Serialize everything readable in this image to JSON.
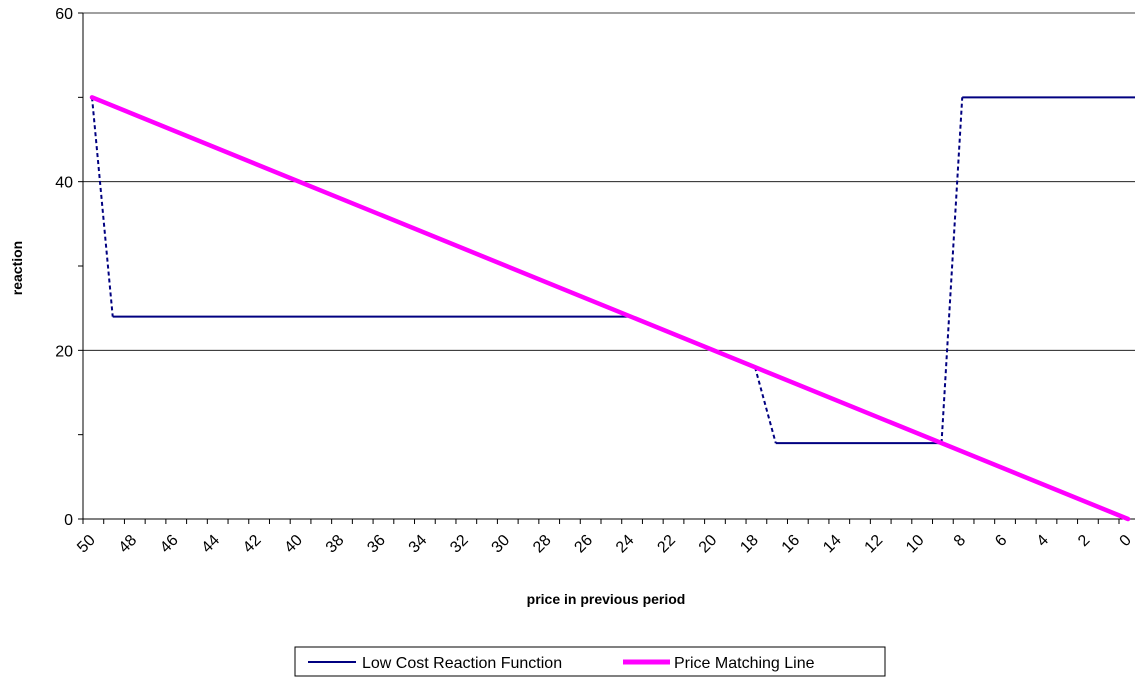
{
  "chart_data": {
    "type": "line",
    "title": "",
    "xlabel": "price in previous period",
    "ylabel": "reaction",
    "xlim": [
      50,
      0
    ],
    "ylim": [
      0,
      60
    ],
    "x_reversed": true,
    "x_ticks": [
      50,
      48,
      46,
      44,
      42,
      40,
      38,
      36,
      34,
      32,
      30,
      28,
      26,
      24,
      22,
      20,
      18,
      16,
      14,
      12,
      10,
      8,
      6,
      4,
      2,
      0
    ],
    "y_ticks": [
      0,
      20,
      40,
      60
    ],
    "grid": "horizontal major lines",
    "legend_placement": "bottom",
    "series": [
      {
        "name": "Low Cost Reaction Function",
        "color": "#000080",
        "segments": [
          {
            "style": "dotted",
            "points": [
              [
                50,
                50
              ],
              [
                49,
                24
              ]
            ]
          },
          {
            "style": "solid",
            "points": [
              [
                49,
                24
              ],
              [
                24,
                24
              ],
              [
                18,
                18
              ]
            ]
          },
          {
            "style": "dotted",
            "points": [
              [
                18,
                18
              ],
              [
                17,
                9
              ]
            ]
          },
          {
            "style": "solid",
            "points": [
              [
                17,
                9
              ],
              [
                9,
                9
              ]
            ]
          },
          {
            "style": "dotted",
            "points": [
              [
                9,
                9
              ],
              [
                8,
                50
              ]
            ]
          },
          {
            "style": "solid",
            "points": [
              [
                8,
                50
              ],
              [
                -1,
                50
              ]
            ]
          }
        ]
      },
      {
        "name": "Price Matching Line",
        "color": "#FF00FF",
        "points": [
          [
            50,
            50
          ],
          [
            0,
            0
          ]
        ]
      }
    ]
  }
}
